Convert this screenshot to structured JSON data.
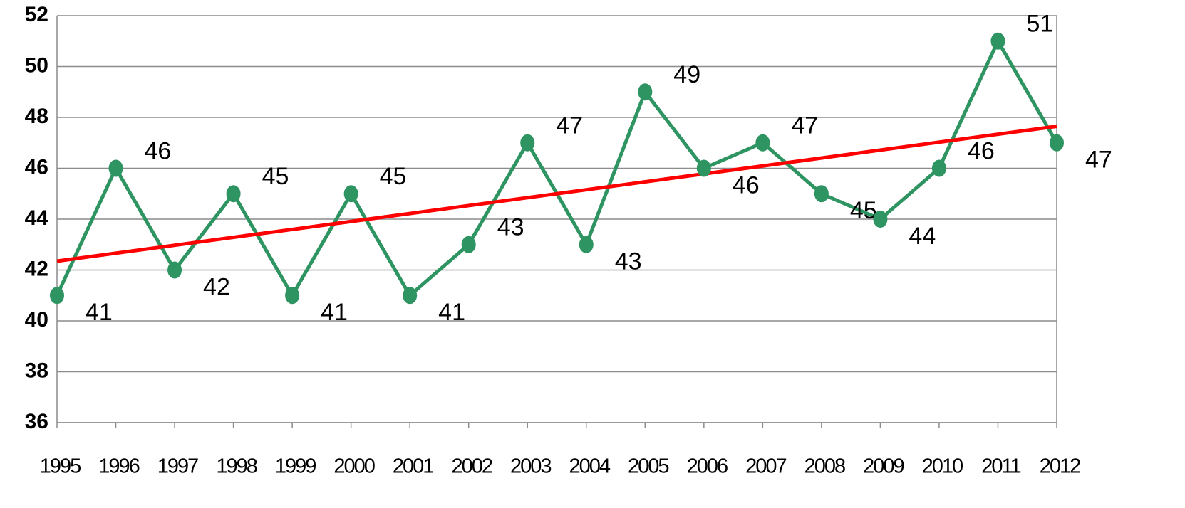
{
  "chart_data": {
    "type": "line",
    "categories": [
      "1995",
      "1996",
      "1997",
      "1998",
      "1999",
      "2000",
      "2001",
      "2002",
      "2003",
      "2004",
      "2005",
      "2006",
      "2007",
      "2008",
      "2009",
      "2010",
      "2011",
      "2012"
    ],
    "series": [
      {
        "color": "#2e9462",
        "values": [
          41,
          46,
          42,
          45,
          41,
          45,
          41,
          43,
          47,
          43,
          49,
          46,
          47,
          45,
          44,
          46,
          51,
          47
        ]
      }
    ],
    "trendline": {
      "color": "#ff0000",
      "values": [
        42.35,
        47.65
      ]
    },
    "ylim": [
      36,
      52
    ],
    "yticks": [
      36,
      38,
      40,
      42,
      44,
      46,
      48,
      50,
      52
    ],
    "grid": true
  }
}
